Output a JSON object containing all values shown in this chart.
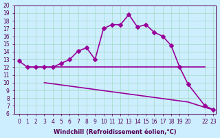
{
  "xlabel": "Windchill (Refroidissement éolien,°C)",
  "ylabel": "",
  "bg_color": "#cceeff",
  "line_color": "#990099",
  "grid_color": "#aaddcc",
  "x_ticks": [
    0,
    1,
    2,
    3,
    4,
    5,
    6,
    7,
    8,
    9,
    10,
    11,
    12,
    13,
    14,
    15,
    16,
    17,
    18,
    19,
    20,
    22,
    23
  ],
  "ylim": [
    6,
    20
  ],
  "xlim": [
    0,
    23
  ],
  "curve1_x": [
    0,
    1,
    2,
    3,
    4,
    5,
    6,
    7,
    8,
    9,
    10,
    11,
    12,
    13,
    14,
    15,
    16,
    17,
    18,
    19,
    20,
    22,
    23
  ],
  "curve1_y": [
    12.8,
    12.0,
    12.0,
    12.0,
    12.0,
    12.5,
    13.0,
    14.1,
    14.5,
    13.0,
    17.0,
    17.5,
    17.5,
    18.8,
    17.2,
    17.5,
    16.5,
    16.0,
    14.8,
    12.0,
    9.8,
    7.0,
    6.5
  ],
  "curve2_x": [
    1,
    3,
    20,
    22
  ],
  "curve2_y": [
    12.0,
    12.0,
    12.0,
    12.0
  ],
  "curve3_x": [
    3,
    20,
    22,
    23
  ],
  "curve3_y": [
    10.0,
    7.5,
    6.8,
    6.5
  ],
  "marker": "D",
  "markersize": 3,
  "linewidth": 1.2
}
